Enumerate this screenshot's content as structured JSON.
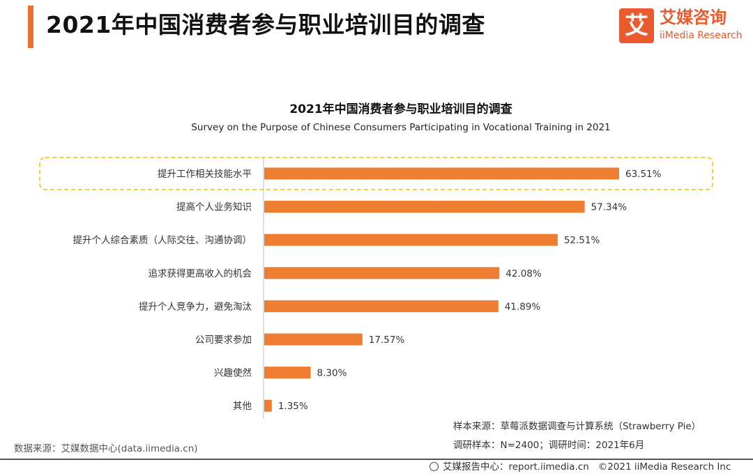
{
  "header": {
    "title": "2021年中国消费者参与职业培训目的调查"
  },
  "logo": {
    "mark": "艾",
    "name_cn": "艾媒咨询",
    "name_en": "iiMedia Research"
  },
  "chart_data": {
    "type": "bar",
    "orientation": "horizontal",
    "title": "2021年中国消费者参与职业培训目的调查",
    "subtitle": "Survey on the Purpose of Chinese Consumers Participating in Vocational Training in 2021",
    "categories": [
      "提升工作相关技能水平",
      "提高个人业务知识",
      "提升个人综合素质（人际交往、沟通协调）",
      "追求获得更高收入的机会",
      "提升个人竞争力，避免淘汰",
      "公司要求参加",
      "兴趣使然",
      "其他"
    ],
    "values": [
      63.51,
      57.34,
      52.51,
      42.08,
      41.89,
      17.57,
      8.3,
      1.35
    ],
    "value_labels": [
      "63.51%",
      "57.34%",
      "52.51%",
      "42.08%",
      "41.89%",
      "17.57%",
      "8.30%",
      "1.35%"
    ],
    "highlighted_category": "提升工作相关技能水平",
    "bar_color": "#ee7d31",
    "highlight_border_color": "#f2c200",
    "xlim": [
      0,
      70
    ],
    "grid": false,
    "legend": "none"
  },
  "notes": {
    "sample_source": "样本来源：草莓派数据调查与计算系统（Strawberry Pie）",
    "sample_info": "调研样本：N=2400；调研时间：2021年6月"
  },
  "footer": {
    "data_source": "数据来源：艾媒数据中心(data.iimedia.cn)",
    "report_center": "艾媒报告中心：report.iimedia.cn",
    "copyright": "©2021  iiMedia Research  Inc"
  }
}
